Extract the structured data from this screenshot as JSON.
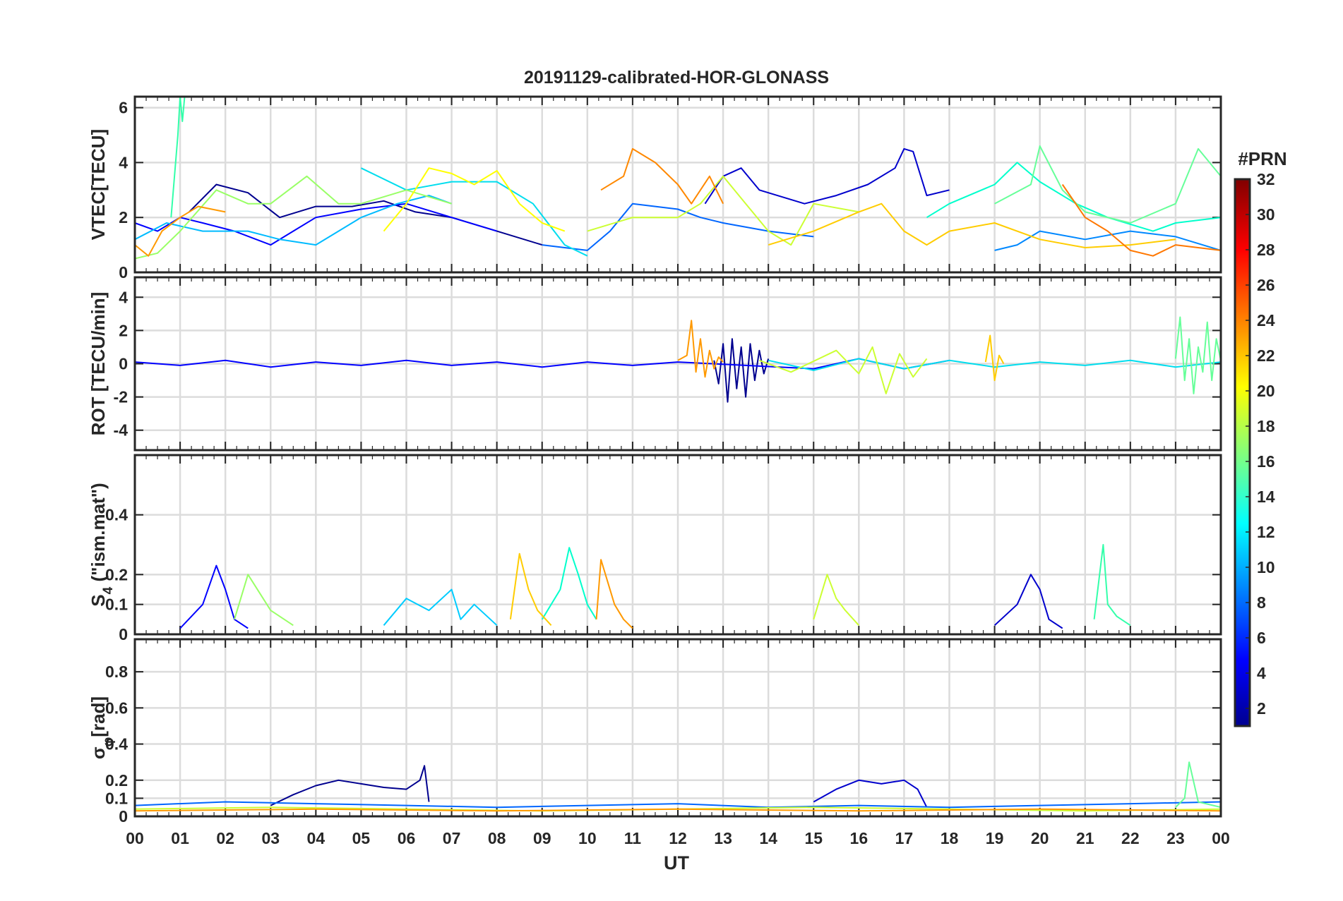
{
  "chart_data": {
    "type": "line",
    "title": "20191129-calibrated-HOR-GLONASS",
    "xlabel": "UT",
    "x_tick_labels": [
      "00",
      "01",
      "02",
      "03",
      "04",
      "05",
      "06",
      "07",
      "08",
      "09",
      "10",
      "11",
      "12",
      "13",
      "14",
      "15",
      "16",
      "17",
      "18",
      "19",
      "20",
      "21",
      "22",
      "23",
      "00"
    ],
    "xlim": [
      0,
      24
    ],
    "grid": true,
    "colorbar": {
      "title": "#PRN",
      "range": [
        1,
        32
      ],
      "ticks": [
        "2",
        "4",
        "6",
        "8",
        "10",
        "12",
        "14",
        "16",
        "18",
        "20",
        "22",
        "24",
        "26",
        "28",
        "30",
        "32"
      ],
      "colormap": "jet",
      "colormap_stops": [
        "#00008f",
        "#0000ff",
        "#00ffff",
        "#ffff00",
        "#ff0000",
        "#800000"
      ]
    },
    "panels": [
      {
        "id": "vtec",
        "ylabel": "VTEC[TECU]",
        "ylim": [
          0,
          6.4
        ],
        "y_ticks": [
          "0",
          "2",
          "4",
          "6"
        ],
        "series": [
          {
            "color": "#00008f",
            "x": [
              1.2,
              1.8,
              2.5,
              3.2,
              4.0,
              4.8,
              5.5,
              6.2,
              7.0,
              8.0,
              9.0
            ],
            "y": [
              2.2,
              3.2,
              2.9,
              2.0,
              2.4,
              2.4,
              2.6,
              2.2,
              2.0,
              1.5,
              1.0
            ]
          },
          {
            "color": "#0000cc",
            "x": [
              12.6,
              13.0,
              13.4,
              13.8,
              14.2,
              14.8,
              15.5,
              16.2,
              16.8,
              17.0,
              17.2,
              17.5,
              18.0
            ],
            "y": [
              2.5,
              3.5,
              3.8,
              3.0,
              2.8,
              2.5,
              2.8,
              3.2,
              3.8,
              4.5,
              4.4,
              2.8,
              3.0
            ]
          },
          {
            "color": "#0000ff",
            "x": [
              0,
              0.5,
              1.0,
              1.5,
              2.2,
              3.0,
              3.5,
              4.0,
              5.0,
              6.0,
              7.0,
              8.0
            ],
            "y": [
              1.8,
              1.5,
              2.0,
              1.8,
              1.5,
              1.0,
              1.5,
              2.0,
              2.3,
              2.5,
              2.0,
              1.5
            ]
          },
          {
            "color": "#0066ff",
            "x": [
              9.0,
              10.0,
              10.5,
              11.0,
              12.0,
              12.5,
              13.0,
              14.0,
              15.0
            ],
            "y": [
              1.0,
              0.8,
              1.5,
              2.5,
              2.3,
              2.0,
              1.8,
              1.5,
              1.3
            ]
          },
          {
            "color": "#0088ff",
            "x": [
              19.0,
              19.5,
              20.0,
              21.0,
              22.0,
              23.0,
              24.0
            ],
            "y": [
              0.8,
              1.0,
              1.5,
              1.2,
              1.5,
              1.3,
              0.8
            ]
          },
          {
            "color": "#00bbff",
            "x": [
              0,
              0.7,
              1.5,
              2.5,
              3.2,
              4.0,
              5.0,
              5.8,
              6.5,
              7.0
            ],
            "y": [
              1.2,
              1.8,
              1.5,
              1.5,
              1.2,
              1.0,
              2.0,
              2.5,
              2.8,
              2.5
            ]
          },
          {
            "color": "#00ddee",
            "x": [
              5.0,
              6.0,
              7.0,
              8.0,
              8.8,
              9.5,
              10.0
            ],
            "y": [
              3.8,
              3.0,
              3.3,
              3.3,
              2.5,
              1.0,
              0.6
            ]
          },
          {
            "color": "#00ffcc",
            "x": [
              17.5,
              18.0,
              19.0,
              19.5,
              20.0,
              20.8,
              21.5,
              22.5,
              23.0,
              24.0
            ],
            "y": [
              2.0,
              2.5,
              3.2,
              4.0,
              3.3,
              2.5,
              2.0,
              1.5,
              1.8,
              2.0
            ]
          },
          {
            "color": "#33ffaa",
            "x": [
              0.8,
              0.95,
              1.0,
              1.05,
              1.1
            ],
            "y": [
              2.0,
              5.0,
              6.4,
              5.5,
              6.4
            ]
          },
          {
            "color": "#66ff99",
            "x": [
              19.0,
              19.8,
              20.0,
              20.5,
              21.0,
              22.0,
              23.0,
              23.5,
              24.0
            ],
            "y": [
              2.5,
              3.2,
              4.6,
              3.0,
              2.2,
              1.8,
              2.5,
              4.5,
              3.5
            ]
          },
          {
            "color": "#99ff66",
            "x": [
              0,
              0.5,
              1.0,
              1.8,
              2.5,
              3.0,
              3.8,
              4.5,
              5.0,
              6.0,
              7.0
            ],
            "y": [
              0.5,
              0.7,
              1.5,
              3.0,
              2.5,
              2.5,
              3.5,
              2.5,
              2.5,
              3.0,
              2.5
            ]
          },
          {
            "color": "#ccff33",
            "x": [
              10.0,
              11.0,
              12.0,
              12.5,
              13.0,
              13.5,
              14.0,
              14.5,
              15.0,
              16.0
            ],
            "y": [
              1.5,
              2.0,
              2.0,
              2.5,
              3.5,
              2.5,
              1.5,
              1.0,
              2.5,
              2.2
            ]
          },
          {
            "color": "#ffff00",
            "x": [
              5.5,
              6.0,
              6.5,
              7.0,
              7.5,
              8.0,
              8.5,
              9.0,
              9.5
            ],
            "y": [
              1.5,
              2.5,
              3.8,
              3.6,
              3.2,
              3.7,
              2.5,
              1.8,
              1.5
            ]
          },
          {
            "color": "#ffcc00",
            "x": [
              14.0,
              15.0,
              16.0,
              16.5,
              17.0,
              17.5,
              18.0,
              19.0,
              20.0,
              21.0,
              22.0,
              23.0
            ],
            "y": [
              1.0,
              1.5,
              2.2,
              2.5,
              1.5,
              1.0,
              1.5,
              1.8,
              1.2,
              0.9,
              1.0,
              1.2
            ]
          },
          {
            "color": "#ff9900",
            "x": [
              0,
              0.3,
              0.6,
              1.0,
              1.4,
              2.0
            ],
            "y": [
              1.0,
              0.6,
              1.5,
              2.0,
              2.4,
              2.2
            ]
          },
          {
            "color": "#ff8800",
            "x": [
              10.3,
              10.8,
              11.0,
              11.5,
              12.0,
              12.3,
              12.7,
              13.0
            ],
            "y": [
              3.0,
              3.5,
              4.5,
              4.0,
              3.2,
              2.5,
              3.5,
              2.5
            ]
          },
          {
            "color": "#ff7700",
            "x": [
              20.5,
              21.0,
              21.5,
              22.0,
              22.5,
              23.0,
              24.0
            ],
            "y": [
              3.2,
              2.0,
              1.5,
              0.8,
              0.6,
              1.0,
              0.8
            ]
          }
        ]
      },
      {
        "id": "rot",
        "ylabel": "ROT [TECU/min]",
        "ylim": [
          -5.2,
          5.2
        ],
        "y_ticks": [
          "-4",
          "-2",
          "0",
          "2",
          "4"
        ],
        "series": [
          {
            "color": "#00008f",
            "x": [
              12.8,
              12.9,
              13.0,
              13.1,
              13.2,
              13.3,
              13.4,
              13.5,
              13.6,
              13.7,
              13.8,
              13.9,
              14.0
            ],
            "y": [
              0.2,
              -1.2,
              1.2,
              -2.3,
              1.5,
              -1.5,
              1.0,
              -2.0,
              1.2,
              -1.0,
              0.8,
              -0.6,
              0.3
            ]
          },
          {
            "color": "#0000ff",
            "x": [
              0,
              1,
              2,
              3,
              4,
              5,
              6,
              7,
              8,
              9,
              10,
              11,
              12,
              15,
              16,
              17,
              18
            ],
            "y": [
              0.1,
              -0.1,
              0.2,
              -0.2,
              0.1,
              -0.1,
              0.2,
              -0.1,
              0.1,
              -0.2,
              0.1,
              -0.1,
              0.1,
              -0.3,
              0.3,
              -0.3,
              0.2
            ]
          },
          {
            "color": "#00ddee",
            "x": [
              14,
              15,
              16,
              17,
              18,
              19,
              20,
              21,
              22,
              23,
              24
            ],
            "y": [
              0.2,
              -0.4,
              0.3,
              -0.3,
              0.2,
              -0.2,
              0.1,
              -0.1,
              0.2,
              -0.2,
              0.1
            ]
          },
          {
            "color": "#66ff99",
            "x": [
              23.0,
              23.1,
              23.2,
              23.3,
              23.4,
              23.5,
              23.6,
              23.7,
              23.8,
              23.9,
              24.0
            ],
            "y": [
              0.3,
              2.8,
              -1.0,
              1.5,
              -1.8,
              1.0,
              -0.5,
              2.5,
              -1.0,
              1.5,
              0.2
            ]
          },
          {
            "color": "#ccff33",
            "x": [
              13.8,
              14.5,
              15.5,
              16.0,
              16.3,
              16.6,
              16.9,
              17.2,
              17.5
            ],
            "y": [
              0.2,
              -0.5,
              0.8,
              -0.6,
              1.0,
              -1.8,
              0.6,
              -0.8,
              0.3
            ]
          },
          {
            "color": "#ff9900",
            "x": [
              12.0,
              12.2,
              12.3,
              12.4,
              12.5,
              12.6,
              12.7,
              12.8,
              12.9,
              13.0
            ],
            "y": [
              0.2,
              0.5,
              2.6,
              -0.5,
              1.5,
              -0.8,
              0.8,
              -0.3,
              0.4,
              0.1
            ]
          },
          {
            "color": "#ffcc00",
            "x": [
              18.8,
              18.9,
              19.0,
              19.1,
              19.2
            ],
            "y": [
              0.1,
              1.7,
              -1.0,
              0.5,
              0.0
            ]
          }
        ]
      },
      {
        "id": "s4",
        "ylabel_main": "S",
        "ylabel_sub": "4",
        "ylabel_rest": " (\"ism.mat\")",
        "ylim": [
          0,
          0.6
        ],
        "y_ticks": [
          "0",
          "0.1",
          "0.2",
          "0.4"
        ],
        "series": [
          {
            "color": "#0000ff",
            "x": [
              1.0,
              1.5,
              1.8,
              2.0,
              2.2,
              2.5
            ],
            "y": [
              0.02,
              0.1,
              0.23,
              0.15,
              0.05,
              0.02
            ]
          },
          {
            "color": "#0000cc",
            "x": [
              19.0,
              19.5,
              19.8,
              20.0,
              20.2,
              20.5
            ],
            "y": [
              0.03,
              0.1,
              0.2,
              0.15,
              0.05,
              0.02
            ]
          },
          {
            "color": "#00ccff",
            "x": [
              5.5,
              6.0,
              6.5,
              7.0,
              7.2,
              7.5,
              8.0
            ],
            "y": [
              0.03,
              0.12,
              0.08,
              0.15,
              0.05,
              0.1,
              0.03
            ]
          },
          {
            "color": "#00ffcc",
            "x": [
              9.0,
              9.4,
              9.6,
              9.8,
              10.0,
              10.2
            ],
            "y": [
              0.05,
              0.15,
              0.29,
              0.2,
              0.1,
              0.05
            ]
          },
          {
            "color": "#33ffaa",
            "x": [
              21.2,
              21.4,
              21.5,
              21.7,
              22.0
            ],
            "y": [
              0.05,
              0.3,
              0.1,
              0.06,
              0.03
            ]
          },
          {
            "color": "#99ff66",
            "x": [
              2.2,
              2.5,
              3.0,
              3.5
            ],
            "y": [
              0.05,
              0.2,
              0.08,
              0.03
            ]
          },
          {
            "color": "#ffcc00",
            "x": [
              8.3,
              8.5,
              8.7,
              8.9,
              9.2
            ],
            "y": [
              0.05,
              0.27,
              0.15,
              0.08,
              0.03
            ]
          },
          {
            "color": "#ff9900",
            "x": [
              10.2,
              10.3,
              10.4,
              10.6,
              10.8,
              11.0
            ],
            "y": [
              0.05,
              0.25,
              0.2,
              0.1,
              0.05,
              0.02
            ]
          },
          {
            "color": "#ccff33",
            "x": [
              15.0,
              15.3,
              15.5,
              15.7,
              16.0
            ],
            "y": [
              0.05,
              0.2,
              0.12,
              0.08,
              0.03
            ]
          }
        ]
      },
      {
        "id": "sigma",
        "ylabel_main": "σ",
        "ylabel_sub": "φ",
        "ylabel_rest": "[rad]",
        "ylim": [
          0,
          0.98
        ],
        "y_ticks": [
          "0",
          "0.1",
          "0.2",
          "0.4",
          "0.6",
          "0.8"
        ],
        "series": [
          {
            "color": "#00008f",
            "x": [
              3.0,
              3.5,
              4.0,
              4.5,
              5.0,
              5.5,
              6.0,
              6.3,
              6.4,
              6.5
            ],
            "y": [
              0.06,
              0.12,
              0.17,
              0.2,
              0.18,
              0.16,
              0.15,
              0.2,
              0.28,
              0.08
            ]
          },
          {
            "color": "#0000cc",
            "x": [
              15.0,
              15.5,
              16.0,
              16.5,
              17.0,
              17.3,
              17.5
            ],
            "y": [
              0.08,
              0.15,
              0.2,
              0.18,
              0.2,
              0.15,
              0.05
            ]
          },
          {
            "color": "#0066ff",
            "x": [
              0,
              2,
              4,
              6,
              8,
              10,
              12,
              14,
              16,
              18,
              20,
              22,
              24
            ],
            "y": [
              0.06,
              0.08,
              0.07,
              0.06,
              0.05,
              0.06,
              0.07,
              0.05,
              0.06,
              0.05,
              0.06,
              0.07,
              0.08
            ]
          },
          {
            "color": "#66ff99",
            "x": [
              23.0,
              23.2,
              23.3,
              23.5,
              24.0
            ],
            "y": [
              0.05,
              0.1,
              0.3,
              0.08,
              0.05
            ]
          },
          {
            "color": "#ccff33",
            "x": [
              0,
              3,
              6,
              9,
              12,
              15,
              18,
              21,
              24
            ],
            "y": [
              0.04,
              0.05,
              0.04,
              0.03,
              0.04,
              0.05,
              0.04,
              0.03,
              0.04
            ]
          },
          {
            "color": "#ff9900",
            "x": [
              0,
              4,
              8,
              12,
              16,
              20,
              24
            ],
            "y": [
              0.03,
              0.04,
              0.03,
              0.04,
              0.03,
              0.04,
              0.03
            ]
          }
        ]
      }
    ]
  }
}
